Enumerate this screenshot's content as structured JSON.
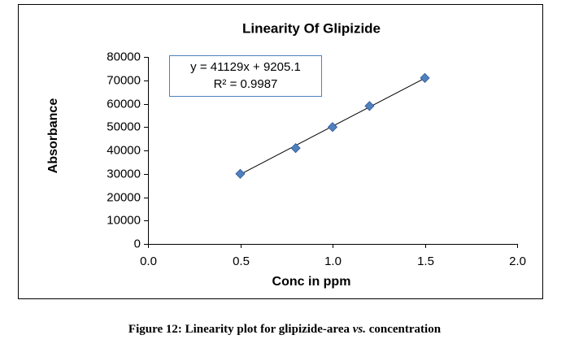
{
  "chart_data": {
    "type": "scatter",
    "title": "Linearity Of Glipizide",
    "xlabel": "Conc in ppm",
    "ylabel": "Absorbance",
    "annotation": [
      "y = 41129x + 9205.1",
      "R² = 0.9987"
    ],
    "x": [
      0.5,
      0.8,
      1.0,
      1.2,
      1.5
    ],
    "series": [
      {
        "name": "Absorbance",
        "color": "#4f81bd",
        "values": [
          30000,
          41000,
          50000,
          59000,
          71000
        ]
      }
    ],
    "trendline": {
      "x": [
        0.5,
        1.5
      ],
      "values": [
        29770,
        70899
      ],
      "color": "#000000"
    },
    "xlim": [
      0,
      2
    ],
    "ylim": [
      0,
      80000
    ],
    "xticks": [
      {
        "value": 0,
        "label": "0.0"
      },
      0.5,
      {
        "value": 1,
        "label": "1.0"
      },
      1.5,
      {
        "value": 2,
        "label": "2.0"
      }
    ],
    "yticks": [
      0,
      10000,
      20000,
      30000,
      40000,
      50000,
      60000,
      70000,
      80000
    ],
    "grid": false
  },
  "caption": [
    "Figure 12: Linearity plot for glipizide-area ",
    "vs.",
    " concentration"
  ]
}
